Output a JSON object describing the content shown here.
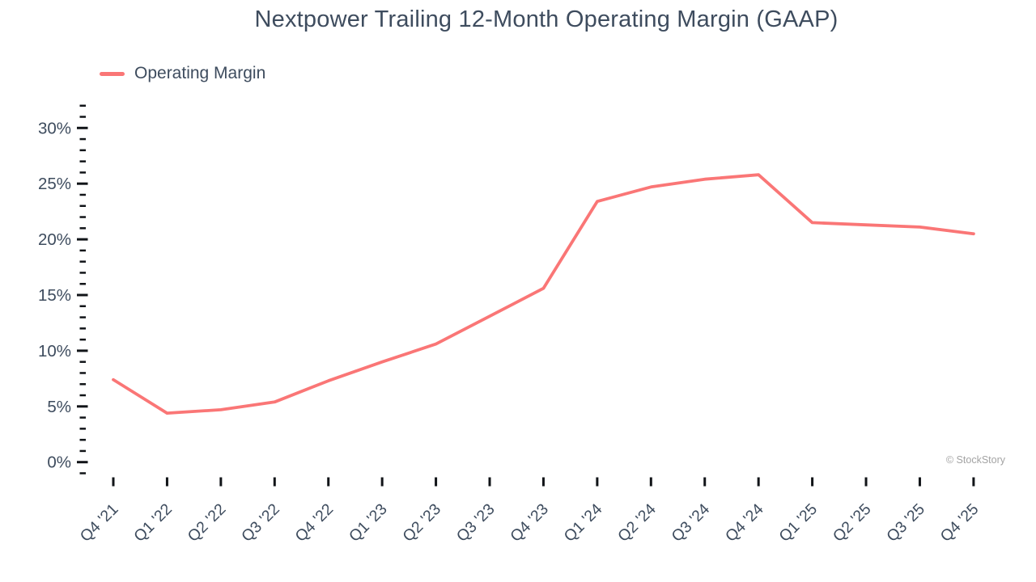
{
  "title": "Nextpower Trailing 12-Month Operating Margin (GAAP)",
  "legend": {
    "label": "Operating Margin",
    "swatch_color": "#FA7676"
  },
  "watermark": "© StockStory",
  "colors": {
    "text": "#3E4C5E",
    "tick": "#111418",
    "series_line": "#FA7676",
    "watermark": "#A3A3A3"
  },
  "chart_data": {
    "type": "line",
    "title": "Nextpower Trailing 12-Month Operating Margin (GAAP)",
    "xlabel": "",
    "ylabel": "",
    "grid": false,
    "legend_position": "top-left",
    "categories": [
      "Q4 '21",
      "Q1 '22",
      "Q2 '22",
      "Q3 '22",
      "Q4 '22",
      "Q1 '23",
      "Q2 '23",
      "Q3 '23",
      "Q4 '23",
      "Q1 '24",
      "Q2 '24",
      "Q3 '24",
      "Q4 '24",
      "Q1 '25",
      "Q2 '25",
      "Q3 '25",
      "Q4 '25"
    ],
    "series": [
      {
        "name": "Operating Margin",
        "color": "#FA7676",
        "values": [
          7.4,
          4.4,
          4.7,
          5.4,
          7.3,
          9.0,
          10.6,
          13.1,
          15.6,
          23.4,
          24.7,
          25.4,
          25.8,
          21.5,
          21.3,
          21.1,
          20.5
        ]
      }
    ],
    "ylim": [
      -1,
      32
    ],
    "y_major_ticks": [
      0,
      5,
      10,
      15,
      20,
      25,
      30
    ],
    "y_tick_labels": [
      "0%",
      "5%",
      "10%",
      "15%",
      "20%",
      "25%",
      "30%"
    ],
    "y_minor_tick_step": 1
  }
}
